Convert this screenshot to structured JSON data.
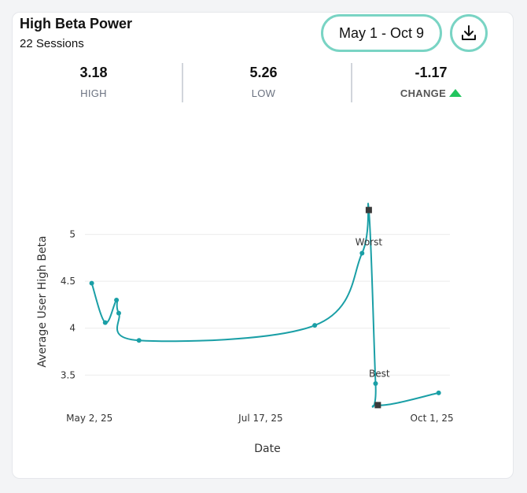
{
  "header": {
    "title": "High Beta Power",
    "subtitle": "22 Sessions",
    "date_range": "May 1 - Oct 9",
    "download_icon": "download-icon"
  },
  "stats": {
    "high": {
      "value": "3.18",
      "label": "HIGH"
    },
    "low": {
      "value": "5.26",
      "label": "LOW"
    },
    "change": {
      "value": "-1.17",
      "label": "CHANGE",
      "trend_icon": "triangle-up-icon",
      "trend_color": "#22c55e"
    }
  },
  "colors": {
    "accent": "#79d4c4",
    "line": "#1a9fa6",
    "marker": "#3a3a3a"
  },
  "chart_data": {
    "type": "line",
    "xlabel": "Date",
    "ylabel": "Average User High Beta",
    "x_ticks": [
      "May  2, 25",
      "Jul 17, 25",
      "Oct  1, 25"
    ],
    "y_ticks": [
      "3.5",
      "4",
      "4.5",
      "5"
    ],
    "xlim": [
      "2025-04-30",
      "2025-10-09"
    ],
    "ylim": [
      3.2,
      5.4
    ],
    "grid": true,
    "series": [
      {
        "points": [
          [
            "2025-05-03",
            4.48
          ],
          [
            "2025-05-09",
            4.06
          ],
          [
            "2025-05-14",
            4.3
          ],
          [
            "2025-05-15",
            4.16
          ],
          [
            "2025-05-24",
            3.87
          ],
          [
            "2025-08-10",
            4.03
          ],
          [
            "2025-08-31",
            4.8
          ],
          [
            "2025-09-06",
            3.41
          ],
          [
            "2025-10-04",
            3.31
          ]
        ]
      }
    ],
    "annotations": [
      {
        "label": "Worst",
        "x": "2025-09-03",
        "y": 5.26
      },
      {
        "label": "Best",
        "x": "2025-09-07",
        "y": 3.18
      }
    ]
  }
}
